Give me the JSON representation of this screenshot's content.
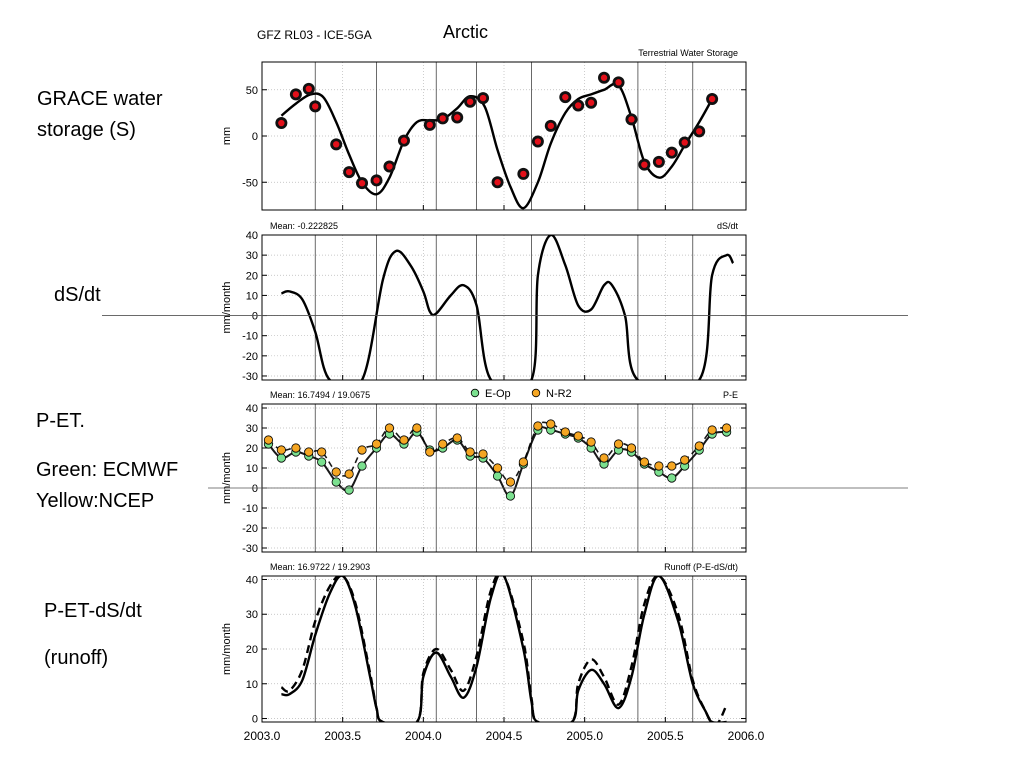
{
  "slide": {
    "title": "Arctic",
    "dataset": "GFZ RL03 - ICE-5GA",
    "labels": {
      "grace": "GRACE water storage (S)",
      "dsdt": "dS/dt",
      "pet": "P-ET.",
      "green": "Green: ECMWF",
      "yellow": "Yellow:NCEP",
      "runoff1": "P-ET-dS/dt",
      "runoff2": "(runoff)"
    },
    "x_ticks": [
      "2003.0",
      "2003.5",
      "2004.0",
      "2004.5",
      "2005.0",
      "2005.5",
      "2006.0"
    ]
  },
  "chart_data": [
    {
      "type": "line",
      "title": "Terrestrial Water Storage",
      "ylabel": "mm",
      "xlim": [
        2003.0,
        2006.0
      ],
      "ylim": [
        -80,
        80
      ],
      "yticks": [
        -50,
        0,
        50
      ],
      "grid": true,
      "series": [
        {
          "points": [
            [
              2003.12,
              14
            ],
            [
              2003.21,
              45
            ],
            [
              2003.29,
              51
            ],
            [
              2003.33,
              32
            ],
            [
              2003.46,
              -9
            ],
            [
              2003.54,
              -39
            ],
            [
              2003.62,
              -51
            ],
            [
              2003.71,
              -48
            ],
            [
              2003.79,
              -33
            ],
            [
              2003.88,
              -5
            ],
            [
              2004.04,
              12
            ],
            [
              2004.12,
              19
            ],
            [
              2004.21,
              20
            ],
            [
              2004.29,
              37
            ],
            [
              2004.37,
              41
            ],
            [
              2004.46,
              -50
            ],
            [
              2004.62,
              -41
            ],
            [
              2004.71,
              -6
            ],
            [
              2004.79,
              11
            ],
            [
              2004.88,
              42
            ],
            [
              2004.96,
              33
            ],
            [
              2005.04,
              36
            ],
            [
              2005.12,
              63
            ],
            [
              2005.21,
              58
            ],
            [
              2005.29,
              18
            ],
            [
              2005.37,
              -31
            ],
            [
              2005.46,
              -28
            ],
            [
              2005.54,
              -18
            ],
            [
              2005.62,
              -7
            ],
            [
              2005.71,
              5
            ],
            [
              2005.79,
              40
            ]
          ]
        },
        {
          "points": [
            [
              2003.12,
              22
            ],
            [
              2003.21,
              35
            ],
            [
              2003.3,
              45
            ],
            [
              2003.38,
              42
            ],
            [
              2003.46,
              15
            ],
            [
              2003.54,
              -20
            ],
            [
              2003.62,
              -50
            ],
            [
              2003.71,
              -63
            ],
            [
              2003.79,
              -45
            ],
            [
              2003.88,
              -5
            ],
            [
              2003.96,
              15
            ],
            [
              2004.04,
              17
            ],
            [
              2004.12,
              18
            ],
            [
              2004.21,
              30
            ],
            [
              2004.29,
              43
            ],
            [
              2004.38,
              32
            ],
            [
              2004.46,
              -15
            ],
            [
              2004.54,
              -55
            ],
            [
              2004.62,
              -78
            ],
            [
              2004.71,
              -50
            ],
            [
              2004.79,
              -8
            ],
            [
              2004.88,
              25
            ],
            [
              2004.96,
              40
            ],
            [
              2005.04,
              45
            ],
            [
              2005.12,
              50
            ],
            [
              2005.21,
              55
            ],
            [
              2005.29,
              20
            ],
            [
              2005.37,
              -28
            ],
            [
              2005.46,
              -45
            ],
            [
              2005.54,
              -33
            ],
            [
              2005.62,
              -10
            ],
            [
              2005.71,
              15
            ],
            [
              2005.79,
              40
            ]
          ]
        }
      ]
    },
    {
      "type": "line",
      "title": "dS/dt",
      "subtitle": "Mean: -0.222825",
      "ylabel": "mm/month",
      "xlim": [
        2003.0,
        2006.0
      ],
      "ylim": [
        -32,
        40
      ],
      "yticks": [
        -30,
        -20,
        -10,
        0,
        10,
        20,
        30,
        40
      ],
      "grid": true,
      "series": [
        {
          "points": [
            [
              2003.12,
              11
            ],
            [
              2003.17,
              12
            ],
            [
              2003.25,
              8
            ],
            [
              2003.33,
              -8
            ],
            [
              2003.42,
              -32
            ],
            [
              2003.62,
              -32
            ],
            [
              2003.75,
              18
            ],
            [
              2003.83,
              32
            ],
            [
              2003.92,
              25
            ],
            [
              2004.0,
              12
            ],
            [
              2004.04,
              2
            ],
            [
              2004.08,
              1
            ],
            [
              2004.17,
              10
            ],
            [
              2004.25,
              15
            ],
            [
              2004.33,
              5
            ],
            [
              2004.42,
              -32
            ],
            [
              2004.67,
              -32
            ],
            [
              2004.71,
              20
            ],
            [
              2004.79,
              40
            ],
            [
              2004.88,
              25
            ],
            [
              2004.96,
              5
            ],
            [
              2005.04,
              3
            ],
            [
              2005.12,
              15
            ],
            [
              2005.17,
              15
            ],
            [
              2005.25,
              0
            ],
            [
              2005.33,
              -32
            ],
            [
              2005.71,
              -32
            ],
            [
              2005.79,
              20
            ],
            [
              2005.88,
              30
            ],
            [
              2005.92,
              26
            ]
          ]
        }
      ]
    },
    {
      "type": "scatter",
      "title": "P-E",
      "subtitle": "Mean: 16.7494 / 19.0675",
      "ylabel": "mm/month",
      "xlim": [
        2003.0,
        2006.0
      ],
      "ylim": [
        -32,
        42
      ],
      "yticks": [
        -30,
        -20,
        -10,
        0,
        10,
        20,
        30,
        40
      ],
      "legend_position": "top-center",
      "grid": true,
      "series": [
        {
          "name": "E-Op",
          "color": "#7be08f",
          "points": [
            [
              2003.04,
              22
            ],
            [
              2003.12,
              15
            ],
            [
              2003.21,
              18
            ],
            [
              2003.29,
              16
            ],
            [
              2003.37,
              13
            ],
            [
              2003.46,
              3
            ],
            [
              2003.54,
              -1
            ],
            [
              2003.62,
              11
            ],
            [
              2003.71,
              20
            ],
            [
              2003.79,
              27
            ],
            [
              2003.88,
              22
            ],
            [
              2003.96,
              28
            ],
            [
              2004.04,
              19
            ],
            [
              2004.12,
              20
            ],
            [
              2004.21,
              24
            ],
            [
              2004.29,
              16
            ],
            [
              2004.37,
              15
            ],
            [
              2004.46,
              6
            ],
            [
              2004.54,
              -4
            ],
            [
              2004.62,
              12
            ],
            [
              2004.71,
              29
            ],
            [
              2004.79,
              29
            ],
            [
              2004.88,
              27
            ],
            [
              2004.96,
              25
            ],
            [
              2005.04,
              20
            ],
            [
              2005.12,
              12
            ],
            [
              2005.21,
              19
            ],
            [
              2005.29,
              18
            ],
            [
              2005.37,
              12
            ],
            [
              2005.46,
              8
            ],
            [
              2005.54,
              5
            ],
            [
              2005.62,
              11
            ],
            [
              2005.71,
              19
            ],
            [
              2005.79,
              27
            ],
            [
              2005.88,
              28
            ]
          ]
        },
        {
          "name": "N-R2",
          "color": "#f5a623",
          "points": [
            [
              2003.04,
              24
            ],
            [
              2003.12,
              19
            ],
            [
              2003.21,
              20
            ],
            [
              2003.29,
              18
            ],
            [
              2003.37,
              18
            ],
            [
              2003.46,
              8
            ],
            [
              2003.54,
              7
            ],
            [
              2003.62,
              19
            ],
            [
              2003.71,
              22
            ],
            [
              2003.79,
              30
            ],
            [
              2003.88,
              24
            ],
            [
              2003.96,
              30
            ],
            [
              2004.04,
              18
            ],
            [
              2004.12,
              22
            ],
            [
              2004.21,
              25
            ],
            [
              2004.29,
              18
            ],
            [
              2004.37,
              17
            ],
            [
              2004.46,
              10
            ],
            [
              2004.54,
              3
            ],
            [
              2004.62,
              13
            ],
            [
              2004.71,
              31
            ],
            [
              2004.79,
              32
            ],
            [
              2004.88,
              28
            ],
            [
              2004.96,
              26
            ],
            [
              2005.04,
              23
            ],
            [
              2005.12,
              15
            ],
            [
              2005.21,
              22
            ],
            [
              2005.29,
              20
            ],
            [
              2005.37,
              13
            ],
            [
              2005.46,
              11
            ],
            [
              2005.54,
              11
            ],
            [
              2005.62,
              14
            ],
            [
              2005.71,
              21
            ],
            [
              2005.79,
              29
            ],
            [
              2005.88,
              30
            ]
          ]
        }
      ]
    },
    {
      "type": "line",
      "title": "Runoff (P-E-dS/dt)",
      "subtitle": "Mean: 16.9722 / 19.2903",
      "ylabel": "mm/month",
      "xlim": [
        2003.0,
        2006.0
      ],
      "ylim": [
        -1,
        41
      ],
      "yticks": [
        0,
        10,
        20,
        30,
        40
      ],
      "grid": true,
      "series": [
        {
          "points": [
            [
              2003.12,
              7
            ],
            [
              2003.17,
              7
            ],
            [
              2003.25,
              11
            ],
            [
              2003.33,
              24
            ],
            [
              2003.42,
              36
            ],
            [
              2003.5,
              41
            ],
            [
              2003.58,
              32
            ],
            [
              2003.67,
              12
            ],
            [
              2003.71,
              3
            ],
            [
              2003.75,
              -1
            ],
            [
              2003.96,
              -1
            ],
            [
              2004.0,
              12
            ],
            [
              2004.08,
              19
            ],
            [
              2004.17,
              12
            ],
            [
              2004.25,
              6
            ],
            [
              2004.33,
              15
            ],
            [
              2004.42,
              35
            ],
            [
              2004.5,
              41
            ],
            [
              2004.62,
              20
            ],
            [
              2004.67,
              5
            ],
            [
              2004.71,
              -1
            ],
            [
              2004.92,
              -1
            ],
            [
              2004.96,
              8
            ],
            [
              2005.04,
              14
            ],
            [
              2005.12,
              10
            ],
            [
              2005.21,
              3
            ],
            [
              2005.29,
              12
            ],
            [
              2005.37,
              30
            ],
            [
              2005.46,
              41
            ],
            [
              2005.58,
              28
            ],
            [
              2005.67,
              10
            ],
            [
              2005.75,
              2
            ],
            [
              2005.79,
              -1
            ],
            [
              2005.88,
              -1
            ]
          ]
        },
        {
          "style": "dashed",
          "points": [
            [
              2003.12,
              9
            ],
            [
              2003.17,
              8
            ],
            [
              2003.25,
              14
            ],
            [
              2003.33,
              28
            ],
            [
              2003.42,
              38
            ],
            [
              2003.5,
              41
            ],
            [
              2003.58,
              33
            ],
            [
              2003.67,
              13
            ],
            [
              2003.71,
              3
            ],
            [
              2003.75,
              -1
            ],
            [
              2003.96,
              -1
            ],
            [
              2004.0,
              13
            ],
            [
              2004.08,
              20
            ],
            [
              2004.17,
              14
            ],
            [
              2004.25,
              8
            ],
            [
              2004.33,
              18
            ],
            [
              2004.42,
              37
            ],
            [
              2004.5,
              41
            ],
            [
              2004.62,
              22
            ],
            [
              2004.67,
              6
            ],
            [
              2004.71,
              -1
            ],
            [
              2004.92,
              -1
            ],
            [
              2004.96,
              10
            ],
            [
              2005.04,
              17
            ],
            [
              2005.12,
              12
            ],
            [
              2005.21,
              4
            ],
            [
              2005.29,
              15
            ],
            [
              2005.37,
              33
            ],
            [
              2005.46,
              41
            ],
            [
              2005.58,
              30
            ],
            [
              2005.67,
              11
            ],
            [
              2005.75,
              2
            ],
            [
              2005.79,
              -1
            ],
            [
              2005.83,
              -1
            ],
            [
              2005.88,
              4
            ]
          ]
        }
      ]
    }
  ]
}
